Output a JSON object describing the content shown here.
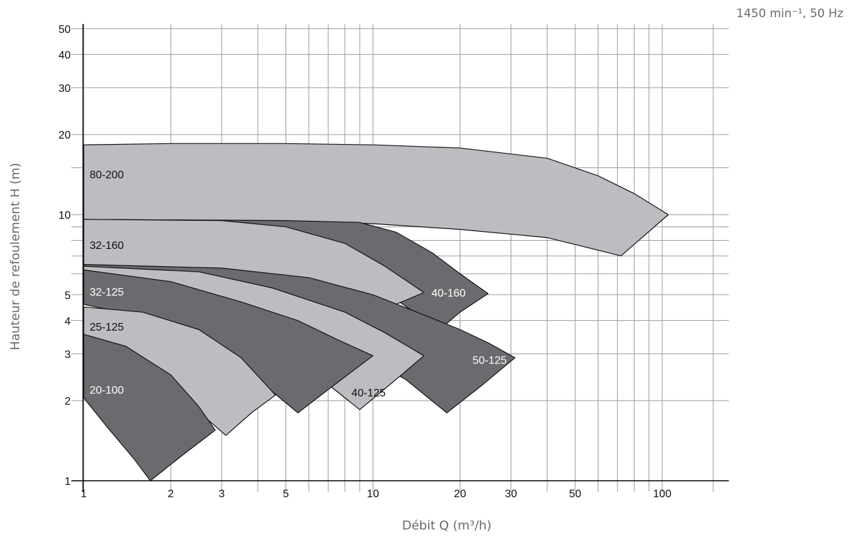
{
  "chart_data": {
    "type": "area",
    "title": "",
    "subtitle": "1450 min⁻¹, 50 Hz",
    "xlabel": "Débit Q (m³/h)",
    "ylabel": "Hauteur de refoulement H (m)",
    "xscale": "log",
    "yscale": "log",
    "xlim": [
      1,
      170
    ],
    "ylim": [
      1,
      50
    ],
    "grid": true,
    "x_ticks": [
      1,
      2,
      3,
      5,
      10,
      20,
      30,
      50,
      100
    ],
    "y_ticks": [
      1,
      2,
      3,
      4,
      5,
      10,
      20,
      30,
      40,
      50
    ],
    "x_gridlines": [
      1,
      2,
      3,
      4,
      5,
      6,
      7,
      8,
      9,
      10,
      20,
      30,
      40,
      50,
      60,
      70,
      80,
      90,
      100,
      150
    ],
    "y_gridlines": [
      1,
      2,
      3,
      4,
      5,
      6,
      7,
      8,
      9,
      10,
      15,
      20,
      30,
      40,
      50
    ],
    "colors": {
      "dark": "#6b6b6f",
      "light": "#bcbdc1",
      "axis": "#000000",
      "grid": "#9a9a9a"
    },
    "series": [
      {
        "name": "80-200",
        "color": "#bcbdc1",
        "label_color": "#111111",
        "label_at": [
          1.02,
          14.2
        ],
        "outline": [
          [
            1,
            18.3
          ],
          [
            2,
            18.5
          ],
          [
            5,
            18.5
          ],
          [
            10,
            18.3
          ],
          [
            20,
            17.8
          ],
          [
            40,
            16.3
          ],
          [
            60,
            14
          ],
          [
            80,
            12
          ],
          [
            105,
            10
          ],
          [
            72,
            7
          ],
          [
            40,
            8.2
          ],
          [
            20,
            8.8
          ],
          [
            10,
            9.25
          ],
          [
            5,
            9.45
          ],
          [
            2,
            9.55
          ],
          [
            1,
            9.6
          ]
        ]
      },
      {
        "name": "40-160",
        "color": "#6b6b6f",
        "label_color": "#ffffff",
        "label_at": [
          15.5,
          5.1
        ],
        "outline": [
          [
            1,
            9.6
          ],
          [
            5,
            9.5
          ],
          [
            9,
            9.35
          ],
          [
            12,
            8.6
          ],
          [
            16,
            7.2
          ],
          [
            20,
            6
          ],
          [
            25,
            5.05
          ],
          [
            20,
            4.3
          ],
          [
            17,
            3.7
          ],
          [
            12,
            4.8
          ],
          [
            5,
            6
          ],
          [
            2,
            6.4
          ],
          [
            1,
            6.5
          ]
        ]
      },
      {
        "name": "32-160",
        "color": "#bcbdc1",
        "label_color": "#111111",
        "label_at": [
          1.02,
          7.7
        ],
        "outline": [
          [
            1,
            9.6
          ],
          [
            3,
            9.5
          ],
          [
            5,
            9
          ],
          [
            8,
            7.8
          ],
          [
            11,
            6.4
          ],
          [
            15,
            5.1
          ],
          [
            12,
            4.6
          ],
          [
            8,
            5.1
          ],
          [
            4,
            5.8
          ],
          [
            2,
            6.2
          ],
          [
            1,
            6.4
          ]
        ]
      },
      {
        "name": "50-125",
        "color": "#6b6b6f",
        "label_color": "#ffffff",
        "label_at": [
          21.5,
          2.85
        ],
        "outline": [
          [
            1,
            6.5
          ],
          [
            3,
            6.3
          ],
          [
            6,
            5.8
          ],
          [
            10,
            5
          ],
          [
            15,
            4.2
          ],
          [
            20,
            3.7
          ],
          [
            25,
            3.3
          ],
          [
            31,
            2.9
          ],
          [
            24,
            2.3
          ],
          [
            18,
            1.8
          ],
          [
            13,
            2.4
          ],
          [
            8,
            3.2
          ],
          [
            4,
            4.6
          ],
          [
            2,
            5.8
          ],
          [
            1,
            6.3
          ]
        ]
      },
      {
        "name": "40-125",
        "color": "#bcbdc1",
        "label_color": "#111111",
        "label_at": [
          8.2,
          2.15
        ],
        "outline": [
          [
            1,
            6.4
          ],
          [
            2.5,
            6.1
          ],
          [
            4.5,
            5.3
          ],
          [
            8,
            4.3
          ],
          [
            11,
            3.6
          ],
          [
            15,
            2.95
          ],
          [
            12,
            2.4
          ],
          [
            9,
            1.85
          ],
          [
            7,
            2.3
          ],
          [
            4.5,
            3.3
          ],
          [
            2,
            5.2
          ],
          [
            1,
            6.2
          ]
        ]
      },
      {
        "name": "32-125",
        "color": "#6b6b6f",
        "label_color": "#ffffff",
        "label_at": [
          1.02,
          5.15
        ],
        "outline": [
          [
            1,
            6.2
          ],
          [
            2,
            5.6
          ],
          [
            3.5,
            4.7
          ],
          [
            5.5,
            4
          ],
          [
            7.5,
            3.4
          ],
          [
            10,
            2.95
          ],
          [
            7,
            2.2
          ],
          [
            5.5,
            1.8
          ],
          [
            4,
            2.4
          ],
          [
            2.5,
            3.4
          ],
          [
            1.5,
            4.2
          ],
          [
            1,
            4.6
          ]
        ]
      },
      {
        "name": "25-125",
        "color": "#bcbdc1",
        "label_color": "#111111",
        "label_at": [
          1.02,
          3.8
        ],
        "outline": [
          [
            1,
            4.5
          ],
          [
            1.6,
            4.3
          ],
          [
            2.5,
            3.7
          ],
          [
            3.5,
            2.9
          ],
          [
            4.6,
            2.1
          ],
          [
            3.8,
            1.8
          ],
          [
            3.1,
            1.48
          ],
          [
            2.6,
            1.75
          ],
          [
            1.8,
            2.6
          ],
          [
            1.3,
            3.2
          ],
          [
            1,
            3.5
          ]
        ]
      },
      {
        "name": "20-100",
        "color": "#6b6b6f",
        "label_color": "#ffffff",
        "label_at": [
          1.02,
          2.2
        ],
        "outline": [
          [
            1,
            3.55
          ],
          [
            1.4,
            3.2
          ],
          [
            2,
            2.5
          ],
          [
            2.5,
            1.9
          ],
          [
            2.85,
            1.55
          ],
          [
            2.2,
            1.25
          ],
          [
            1.7,
            1
          ],
          [
            1.5,
            1.2
          ],
          [
            1.2,
            1.6
          ],
          [
            1,
            2.05
          ]
        ]
      }
    ]
  }
}
